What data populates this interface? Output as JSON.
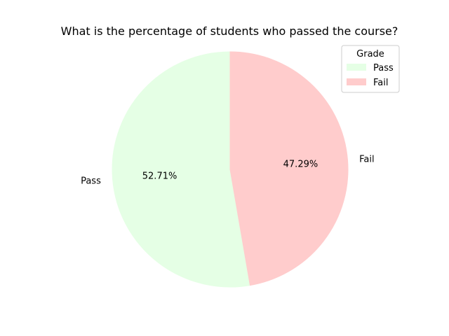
{
  "chart_data": {
    "type": "pie",
    "title": "What is the percentage of students who passed the course?",
    "labels": [
      "Pass",
      "Fail"
    ],
    "values": [
      52.71,
      47.29
    ],
    "value_labels": [
      "52.71%",
      "47.29%"
    ],
    "colors": [
      "#e5ffe5",
      "#ffcccc"
    ],
    "legend": {
      "title": "Grade",
      "placement": "top-right",
      "entries": [
        "Pass",
        "Fail"
      ]
    }
  }
}
